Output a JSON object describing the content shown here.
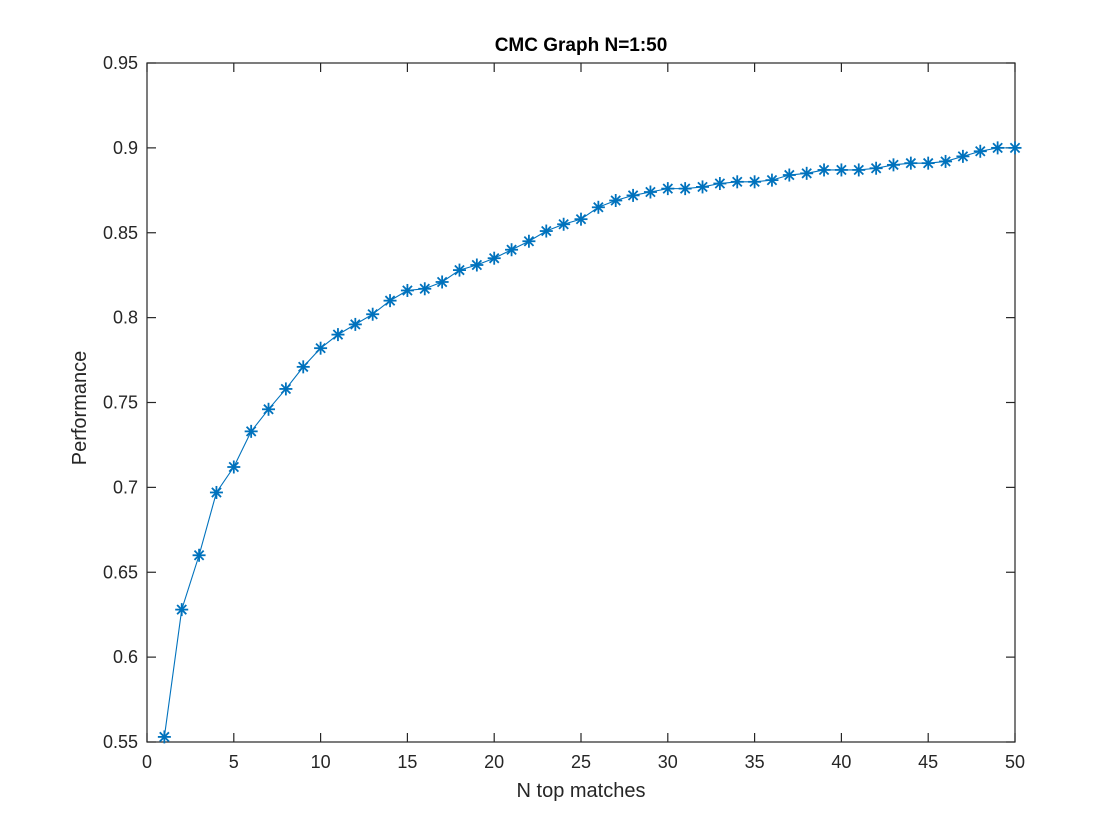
{
  "chart_data": {
    "type": "line",
    "title": "CMC Graph N=1:50",
    "xlabel": "N top matches",
    "ylabel": "Performance",
    "xlim": [
      0,
      50
    ],
    "ylim": [
      0.55,
      0.95
    ],
    "xticks": [
      0,
      5,
      10,
      15,
      20,
      25,
      30,
      35,
      40,
      45,
      50
    ],
    "yticks": [
      0.55,
      0.6,
      0.65,
      0.7,
      0.75,
      0.8,
      0.85,
      0.9,
      0.95
    ],
    "xtick_labels": [
      "0",
      "5",
      "10",
      "15",
      "20",
      "25",
      "30",
      "35",
      "40",
      "45",
      "50"
    ],
    "ytick_labels": [
      "0.55",
      "0.6",
      "0.65",
      "0.7",
      "0.75",
      "0.8",
      "0.85",
      "0.9",
      "0.95"
    ],
    "grid": false,
    "marker": "asterisk",
    "line_color": "#0072bd",
    "axis_color": "#262626",
    "series": [
      {
        "x": [
          1,
          2,
          3,
          4,
          5,
          6,
          7,
          8,
          9,
          10,
          11,
          12,
          13,
          14,
          15,
          16,
          17,
          18,
          19,
          20,
          21,
          22,
          23,
          24,
          25,
          26,
          27,
          28,
          29,
          30,
          31,
          32,
          33,
          34,
          35,
          36,
          37,
          38,
          39,
          40,
          41,
          42,
          43,
          44,
          45,
          46,
          47,
          48,
          49,
          50
        ],
        "values": [
          0.553,
          0.628,
          0.66,
          0.697,
          0.712,
          0.733,
          0.746,
          0.758,
          0.771,
          0.782,
          0.79,
          0.796,
          0.802,
          0.81,
          0.816,
          0.817,
          0.821,
          0.828,
          0.831,
          0.835,
          0.84,
          0.845,
          0.851,
          0.855,
          0.858,
          0.865,
          0.869,
          0.872,
          0.874,
          0.876,
          0.876,
          0.877,
          0.879,
          0.88,
          0.88,
          0.881,
          0.884,
          0.885,
          0.887,
          0.887,
          0.887,
          0.888,
          0.89,
          0.891,
          0.891,
          0.892,
          0.895,
          0.898,
          0.9,
          0.9
        ]
      }
    ]
  }
}
